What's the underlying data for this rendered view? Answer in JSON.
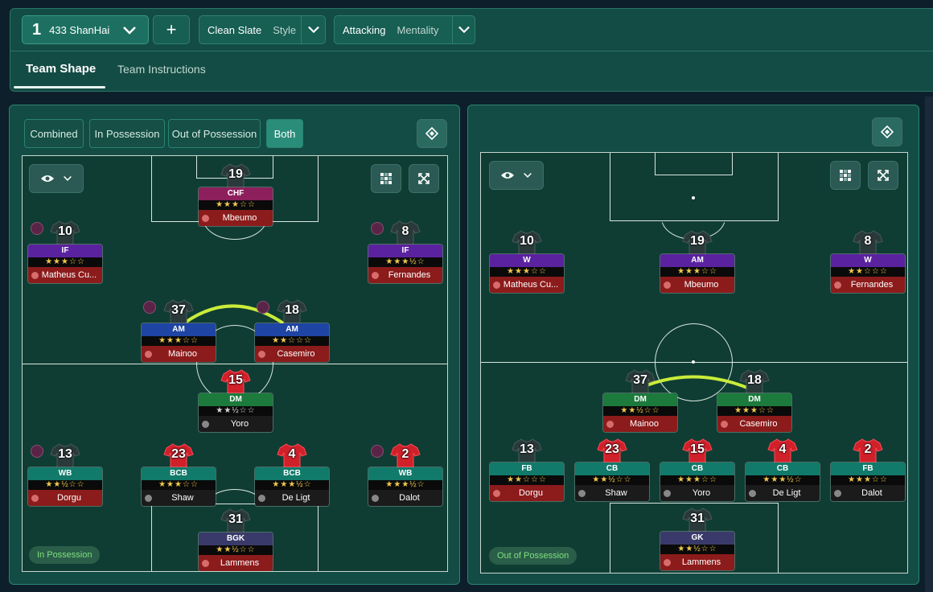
{
  "header": {
    "tactic_number": "1",
    "tactic_name": "433 ShanHai",
    "add_label": "+",
    "style_value": "Clean Slate",
    "style_label": "Style",
    "mentality_value": "Attacking",
    "mentality_label": "Mentality"
  },
  "tabs": [
    {
      "label": "Team Shape",
      "active": true
    },
    {
      "label": "Team Instructions",
      "active": false
    }
  ],
  "left_panel": {
    "phase_tabs": [
      "Combined",
      "In Possession",
      "Out of Possession",
      "Both"
    ],
    "selected_phase": "Both",
    "phase_badge": "In Possession",
    "players": [
      {
        "number": "19",
        "role": "CHF",
        "stars": "★★★☆☆",
        "name": "Mbeumo",
        "role_color": "#8c1f5c",
        "shirt_color": "#2a3a3a"
      },
      {
        "number": "10",
        "role": "IF",
        "stars": "★★★☆☆",
        "name": "Matheus Cu...",
        "role_color": "#5b22a0",
        "shirt_color": "#2a3a3a"
      },
      {
        "number": "8",
        "role": "IF",
        "stars": "★★★½☆",
        "name": "Fernandes",
        "role_color": "#5b22a0",
        "shirt_color": "#2a3a3a"
      },
      {
        "number": "37",
        "role": "AM",
        "stars": "★★★☆☆",
        "name": "Mainoo",
        "role_color": "#1e44a4",
        "shirt_color": "#2a3a3a"
      },
      {
        "number": "18",
        "role": "AM",
        "stars": "★★☆☆☆",
        "name": "Casemiro",
        "role_color": "#1e44a4",
        "shirt_color": "#2a3a3a"
      },
      {
        "number": "15",
        "role": "DM",
        "stars": "★★½☆☆",
        "name": "Yoro",
        "role_color": "#1c7a3c",
        "shirt_color": "#d0202a"
      },
      {
        "number": "13",
        "role": "WB",
        "stars": "★★½☆☆",
        "name": "Dorgu",
        "role_color": "#117a6a",
        "shirt_color": "#2a3a3a"
      },
      {
        "number": "23",
        "role": "BCB",
        "stars": "★★★☆☆",
        "name": "Shaw",
        "role_color": "#117a6a",
        "shirt_color": "#d0202a"
      },
      {
        "number": "4",
        "role": "BCB",
        "stars": "★★★½☆",
        "name": "De Ligt",
        "role_color": "#117a6a",
        "shirt_color": "#d0202a"
      },
      {
        "number": "2",
        "role": "WB",
        "stars": "★★★½☆",
        "name": "Dalot",
        "role_color": "#117a6a",
        "shirt_color": "#d0202a"
      },
      {
        "number": "31",
        "role": "BGK",
        "stars": "★★½☆☆",
        "name": "Lammens",
        "role_color": "#3a3a6a",
        "shirt_color": "#2a3a3a"
      }
    ]
  },
  "right_panel": {
    "phase_badge": "Out of Possession",
    "players": [
      {
        "number": "10",
        "role": "W",
        "stars": "★★★☆☆",
        "name": "Matheus Cu...",
        "role_color": "#5b22a0",
        "shirt_color": "#2a3a3a"
      },
      {
        "number": "19",
        "role": "AM",
        "stars": "★★★☆☆",
        "name": "Mbeumo",
        "role_color": "#5b22a0",
        "shirt_color": "#2a3a3a"
      },
      {
        "number": "8",
        "role": "W",
        "stars": "★★☆☆☆",
        "name": "Fernandes",
        "role_color": "#5b22a0",
        "shirt_color": "#2a3a3a"
      },
      {
        "number": "37",
        "role": "DM",
        "stars": "★★½☆☆",
        "name": "Mainoo",
        "role_color": "#1c7a3c",
        "shirt_color": "#2a3a3a"
      },
      {
        "number": "18",
        "role": "DM",
        "stars": "★★★☆☆",
        "name": "Casemiro",
        "role_color": "#1c7a3c",
        "shirt_color": "#2a3a3a"
      },
      {
        "number": "13",
        "role": "FB",
        "stars": "★★☆☆☆",
        "name": "Dorgu",
        "role_color": "#117a6a",
        "shirt_color": "#2a3a3a"
      },
      {
        "number": "23",
        "role": "CB",
        "stars": "★★½☆☆",
        "name": "Shaw",
        "role_color": "#117a6a",
        "shirt_color": "#d0202a"
      },
      {
        "number": "15",
        "role": "CB",
        "stars": "★★★☆☆",
        "name": "Yoro",
        "role_color": "#117a6a",
        "shirt_color": "#d0202a"
      },
      {
        "number": "4",
        "role": "CB",
        "stars": "★★★½☆",
        "name": "De Ligt",
        "role_color": "#117a6a",
        "shirt_color": "#d0202a"
      },
      {
        "number": "2",
        "role": "FB",
        "stars": "★★★☆☆",
        "name": "Dalot",
        "role_color": "#117a6a",
        "shirt_color": "#d0202a"
      },
      {
        "number": "31",
        "role": "GK",
        "stars": "★★½☆☆",
        "name": "Lammens",
        "role_color": "#3a3a6a",
        "shirt_color": "#2a3a3a"
      }
    ]
  },
  "icons": [
    "chevron-down-icon",
    "plus-icon",
    "eye-icon",
    "grid-icon",
    "expand-icon",
    "tactic-board-icon",
    "shirt-icon",
    "football-icon",
    "avatar-icon"
  ]
}
